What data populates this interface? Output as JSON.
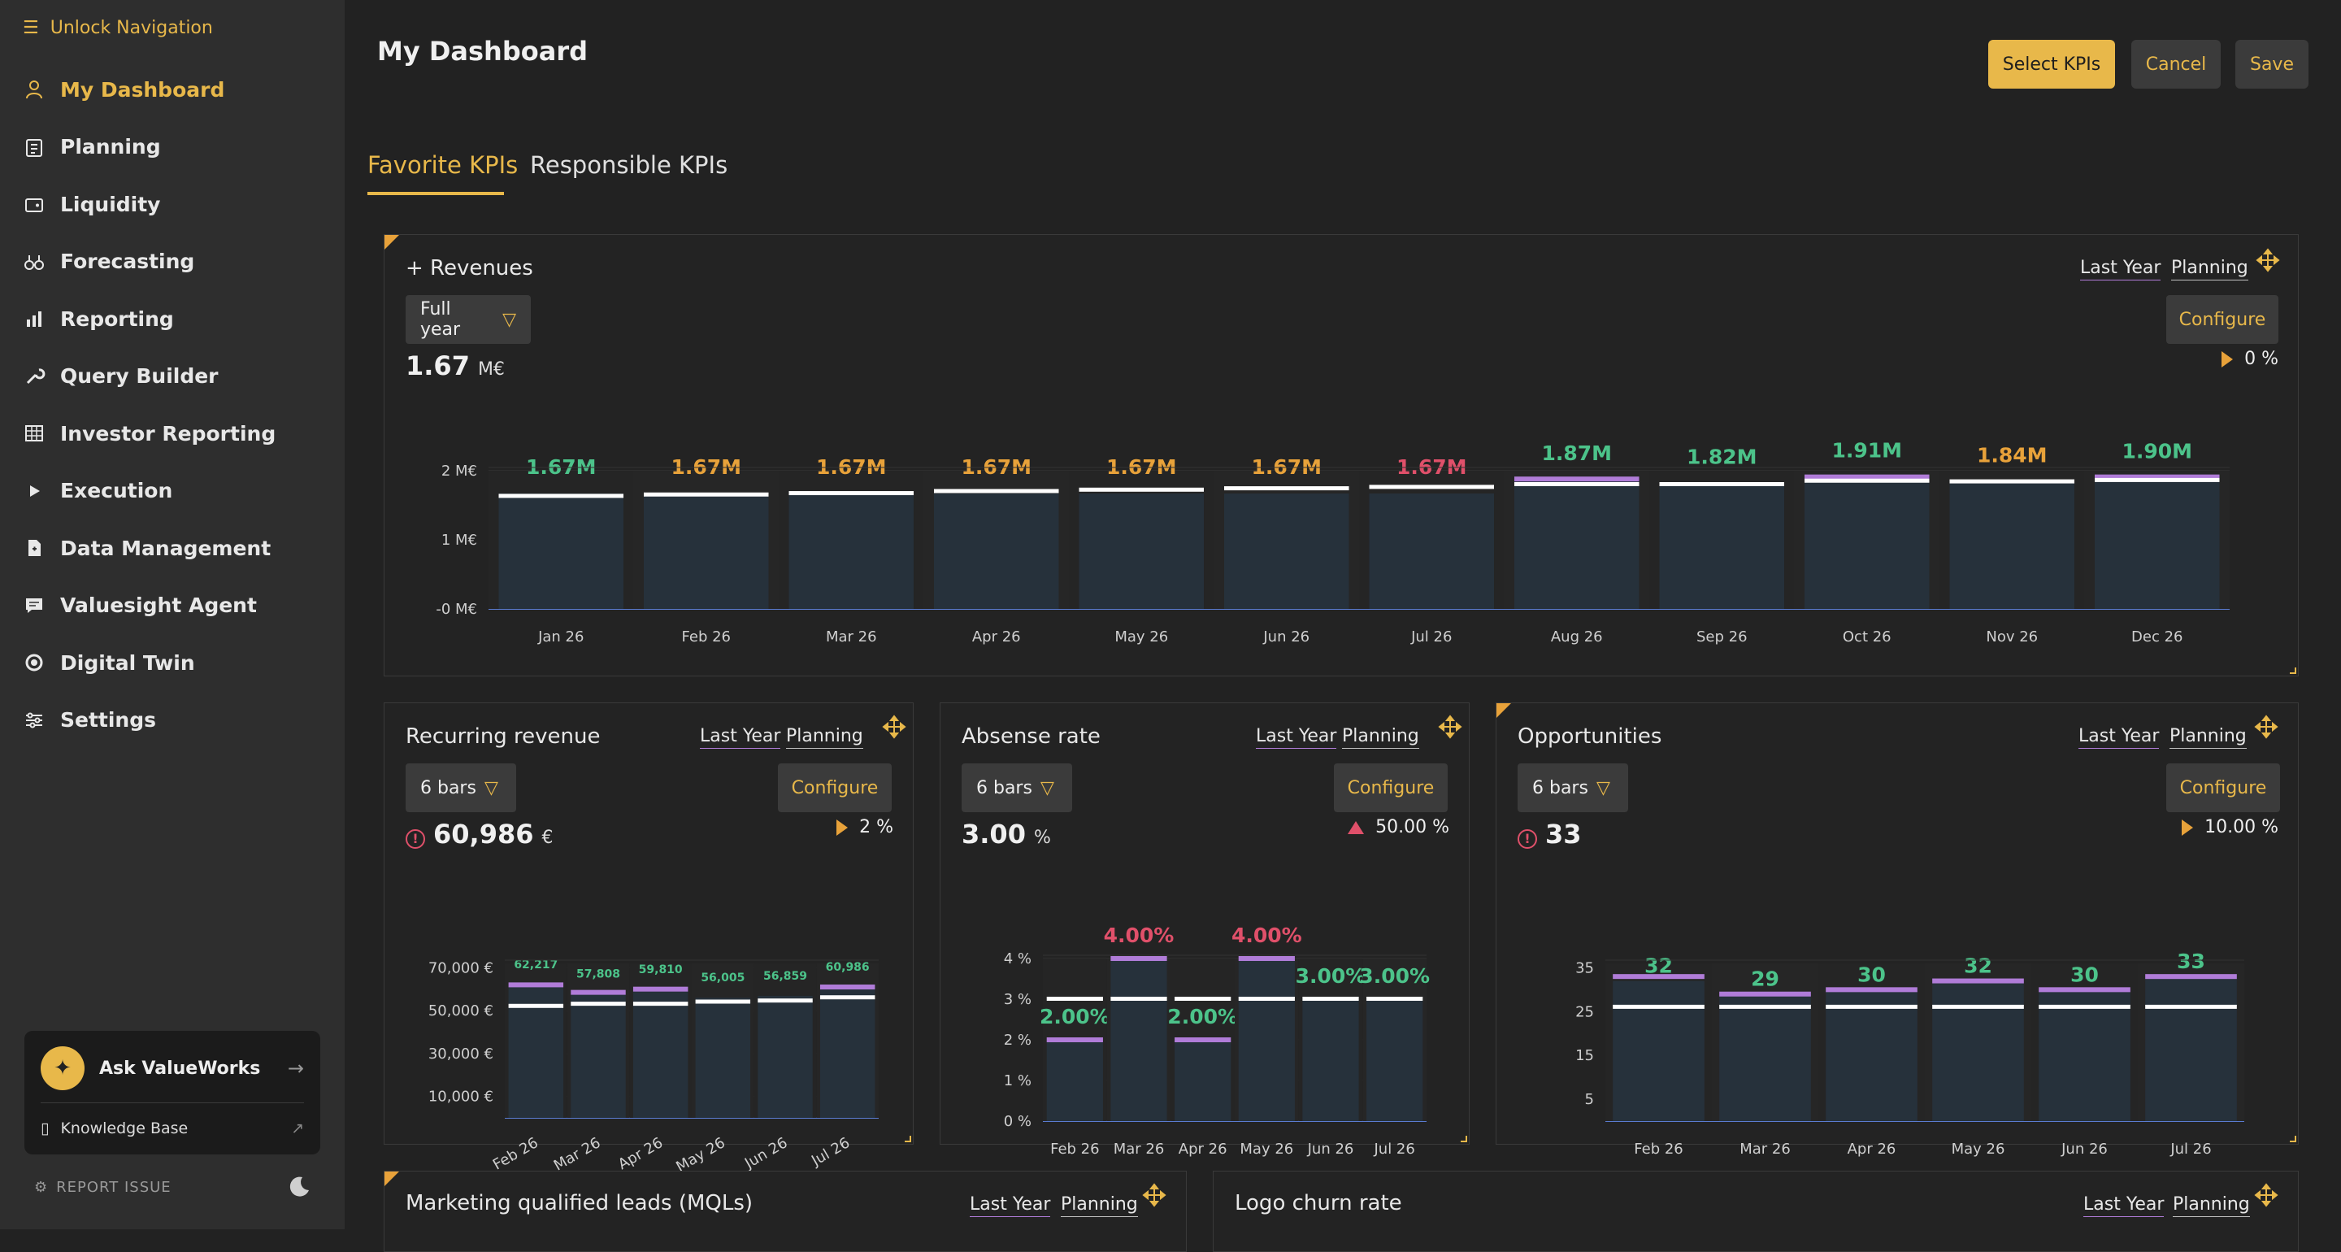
{
  "sidebar": {
    "unlock_label": "Unlock Navigation",
    "items": [
      {
        "label": "My Dashboard",
        "icon": "user-icon",
        "active": true
      },
      {
        "label": "Planning",
        "icon": "clipboard-icon"
      },
      {
        "label": "Liquidity",
        "icon": "wallet-icon"
      },
      {
        "label": "Forecasting",
        "icon": "binoculars-icon"
      },
      {
        "label": "Reporting",
        "icon": "bar-chart-icon"
      },
      {
        "label": "Query Builder",
        "icon": "wrench-icon"
      },
      {
        "label": "Investor Reporting",
        "icon": "table-icon"
      },
      {
        "label": "Execution",
        "icon": "play-icon"
      },
      {
        "label": "Data Management",
        "icon": "file-icon"
      },
      {
        "label": "Valuesight Agent",
        "icon": "chat-icon"
      },
      {
        "label": "Digital Twin",
        "icon": "chip-icon"
      },
      {
        "label": "Settings",
        "icon": "sliders-icon"
      }
    ],
    "ask_label": "Ask ValueWorks",
    "knowledge_base": "Knowledge Base",
    "report_issue": "REPORT ISSUE"
  },
  "header": {
    "title": "My Dashboard",
    "select_kpis": "Select KPIs",
    "cancel": "Cancel",
    "save": "Save"
  },
  "tabs": [
    {
      "label": "Favorite KPIs",
      "active": true
    },
    {
      "label": "Responsible KPIs",
      "active": false
    }
  ],
  "common": {
    "last_year": "Last Year",
    "planning": "Planning",
    "configure": "Configure"
  },
  "cards": {
    "revenues": {
      "title": "+ Revenues",
      "dropdown": "Full year",
      "value": "1.67",
      "unit": "M€",
      "delta": "0 %"
    },
    "recurring": {
      "title": "Recurring revenue",
      "dropdown": "6 bars",
      "value": "60,986",
      "unit": "€",
      "delta": "2 %"
    },
    "absense": {
      "title": "Absense rate",
      "dropdown": "6 bars",
      "value": "3.00",
      "unit": "%",
      "delta": "50.00 %"
    },
    "opportunities": {
      "title": "Opportunities",
      "dropdown": "6 bars",
      "value": "33",
      "delta": "10.00 %"
    },
    "mqls": {
      "title": "Marketing qualified leads (MQLs)"
    },
    "logo_churn": {
      "title": "Logo churn rate"
    }
  },
  "chart_data": [
    {
      "type": "bar",
      "title": "+ Revenues",
      "categories": [
        "Jan 26",
        "Feb 26",
        "Mar 26",
        "Apr 26",
        "May 26",
        "Jun 26",
        "Jul 26",
        "Aug 26",
        "Sep 26",
        "Oct 26",
        "Nov 26",
        "Dec 26"
      ],
      "values": [
        1.67,
        1.67,
        1.67,
        1.67,
        1.67,
        1.67,
        1.67,
        1.87,
        1.82,
        1.91,
        1.84,
        1.9
      ],
      "labels": [
        "1.67M",
        "1.67M",
        "1.67M",
        "1.67M",
        "1.67M",
        "1.67M",
        "1.67M",
        "1.87M",
        "1.82M",
        "1.91M",
        "1.84M",
        "1.90M"
      ],
      "label_colors": [
        "#4cc38a",
        "#e8a23a",
        "#e8a23a",
        "#e8a23a",
        "#e8a23a",
        "#e8a23a",
        "#e0506a",
        "#4cc38a",
        "#4cc38a",
        "#4cc38a",
        "#e8a23a",
        "#4cc38a"
      ],
      "planning": [
        1.63,
        1.65,
        1.67,
        1.7,
        1.72,
        1.74,
        1.76,
        1.8,
        1.8,
        1.85,
        1.84,
        1.86
      ],
      "last_year": [
        null,
        null,
        null,
        null,
        null,
        null,
        null,
        1.88,
        null,
        1.91,
        null,
        1.91
      ],
      "y_ticks": [
        "-0 M€",
        "1 M€",
        "2 M€"
      ],
      "y_tick_values": [
        0,
        1,
        2
      ],
      "ylim": [
        0,
        2
      ]
    },
    {
      "type": "bar",
      "title": "Recurring revenue",
      "categories": [
        "Feb 26",
        "Mar 26",
        "Apr 26",
        "May 26",
        "Jun 26",
        "Jul 26"
      ],
      "values": [
        62217,
        57808,
        59810,
        56005,
        56859,
        60986
      ],
      "labels": [
        "62,217",
        "57,808",
        "59,810",
        "56,005",
        "56,859",
        "60,986"
      ],
      "planning": [
        52000,
        53000,
        53000,
        54000,
        54500,
        56000
      ],
      "last_year": [
        62000,
        58500,
        60000,
        null,
        null,
        61000
      ],
      "y_ticks": [
        "10,000 €",
        "30,000 €",
        "50,000 €",
        "70,000 €"
      ],
      "y_tick_values": [
        10000,
        30000,
        50000,
        70000
      ],
      "ylim": [
        0,
        72000
      ]
    },
    {
      "type": "bar",
      "title": "Absense rate",
      "categories": [
        "Feb 26",
        "Mar 26",
        "Apr 26",
        "May 26",
        "Jun 26",
        "Jul 26"
      ],
      "values": [
        2.0,
        4.0,
        2.0,
        4.0,
        3.0,
        3.0
      ],
      "labels": [
        "2.00%",
        "4.00%",
        "2.00%",
        "4.00%",
        "3.00%",
        "3.00%"
      ],
      "label_colors": [
        "#4cc38a",
        "#e0506a",
        "#4cc38a",
        "#e0506a",
        "#4cc38a",
        "#4cc38a"
      ],
      "planning": [
        3.0,
        3.0,
        3.0,
        3.0,
        3.0,
        3.0
      ],
      "last_year": [
        2.0,
        4.0,
        2.0,
        4.0,
        null,
        null
      ],
      "y_ticks": [
        "0 %",
        "1 %",
        "2 %",
        "3 %",
        "4 %"
      ],
      "y_tick_values": [
        0,
        1,
        2,
        3,
        4
      ],
      "ylim": [
        0,
        4
      ]
    },
    {
      "type": "bar",
      "title": "Opportunities",
      "categories": [
        "Feb 26",
        "Mar 26",
        "Apr 26",
        "May 26",
        "Jun 26",
        "Jul 26"
      ],
      "values": [
        32,
        29,
        30,
        32,
        30,
        33
      ],
      "labels": [
        "32",
        "29",
        "30",
        "32",
        "30",
        "33"
      ],
      "planning": [
        26,
        26,
        26,
        26,
        26,
        26
      ],
      "last_year": [
        33,
        29,
        30,
        32,
        30,
        33
      ],
      "y_ticks": [
        "5",
        "15",
        "25",
        "35"
      ],
      "y_tick_values": [
        5,
        15,
        25,
        35
      ],
      "ylim": [
        0,
        36
      ]
    }
  ],
  "colors": {
    "accent": "#e8b84a",
    "bar_fill": "#26313b",
    "good": "#4cc38a",
    "bad": "#e0506a",
    "warn": "#e8a23a",
    "last_year": "#b07cd8"
  }
}
